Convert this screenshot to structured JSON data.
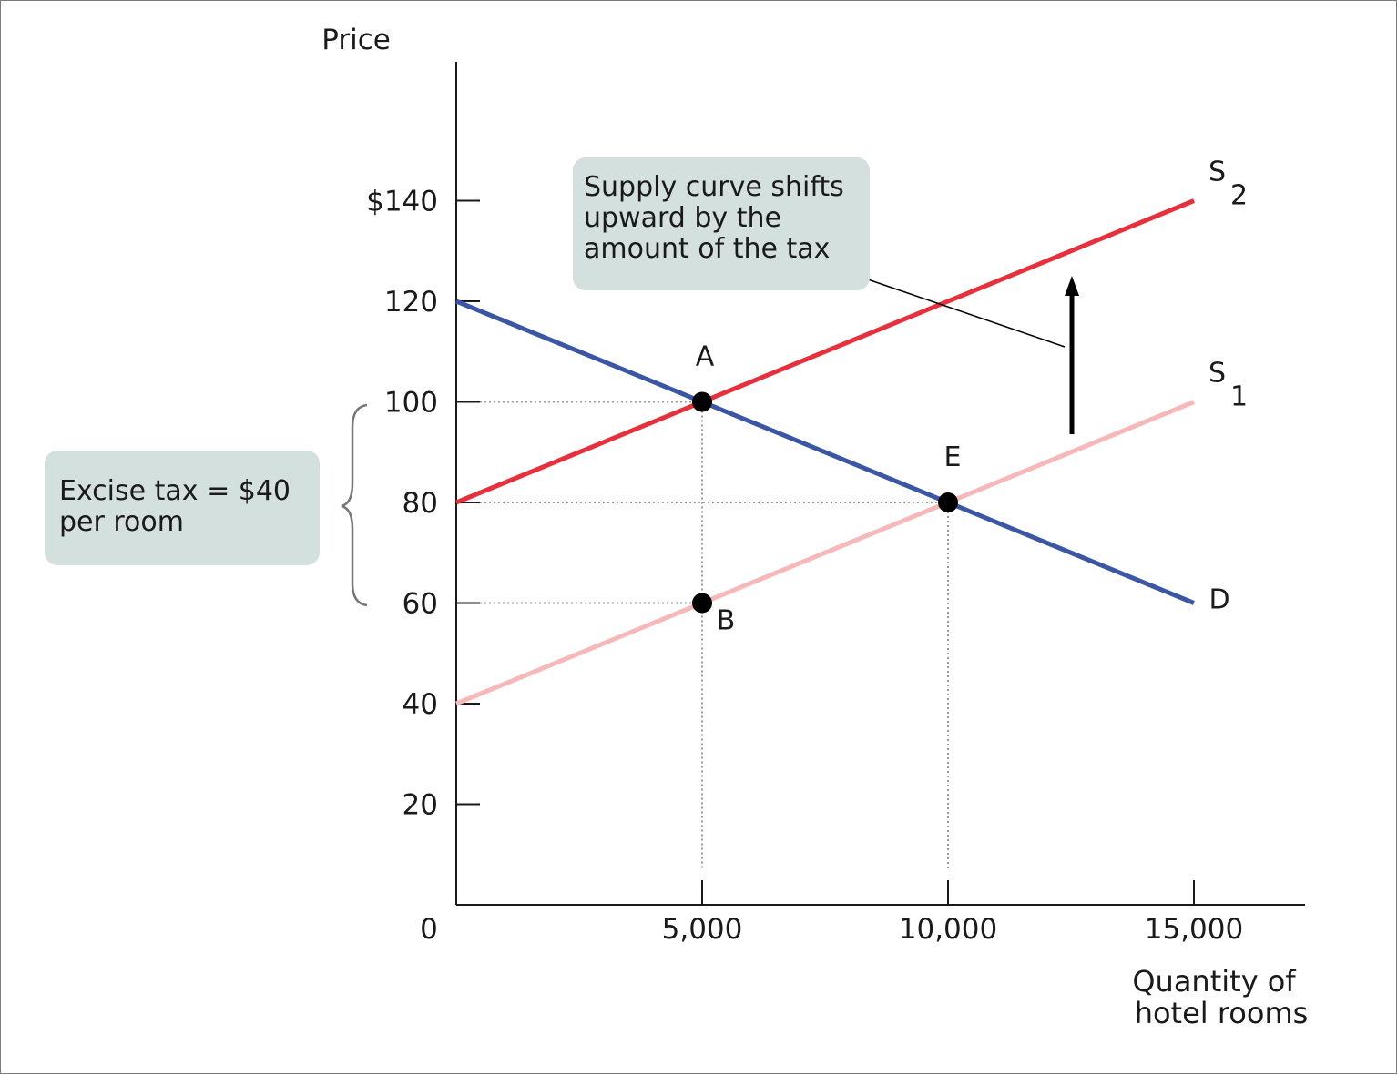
{
  "chart_data": {
    "type": "line",
    "xlabel": "Quantity of hotel rooms",
    "ylabel": "Price",
    "xlim": [
      0,
      17000
    ],
    "ylim": [
      0,
      160
    ],
    "x_ticks": [
      {
        "value": 0,
        "label": "0"
      },
      {
        "value": 5000,
        "label": "5,000"
      },
      {
        "value": 10000,
        "label": "10,000"
      },
      {
        "value": 15000,
        "label": "15,000"
      }
    ],
    "y_ticks": [
      {
        "value": 20,
        "label": "20"
      },
      {
        "value": 40,
        "label": "40"
      },
      {
        "value": 60,
        "label": "60"
      },
      {
        "value": 80,
        "label": "80"
      },
      {
        "value": 100,
        "label": "100"
      },
      {
        "value": 120,
        "label": "120"
      },
      {
        "value": 140,
        "label": "$140"
      }
    ],
    "series": [
      {
        "key": "D",
        "label": "D",
        "sub": "",
        "color": "#3b56a4",
        "points": [
          [
            0,
            120
          ],
          [
            15000,
            60
          ]
        ]
      },
      {
        "key": "S1",
        "label": "S",
        "sub": "1",
        "color": "#f6b8b8",
        "points": [
          [
            0,
            40
          ],
          [
            15000,
            100
          ]
        ]
      },
      {
        "key": "S2",
        "label": "S",
        "sub": "2",
        "color": "#e8303c",
        "points": [
          [
            0,
            80
          ],
          [
            15000,
            140
          ]
        ]
      }
    ],
    "points": [
      {
        "label": "A",
        "x": 5000,
        "y": 100
      },
      {
        "label": "E",
        "x": 10000,
        "y": 80
      },
      {
        "label": "B",
        "x": 5000,
        "y": 60
      }
    ],
    "annotations": {
      "shift_note": [
        "Supply curve shifts",
        "upward by the",
        "amount of the tax"
      ],
      "tax_note": [
        "Excise tax = $40",
        "per room"
      ]
    }
  }
}
